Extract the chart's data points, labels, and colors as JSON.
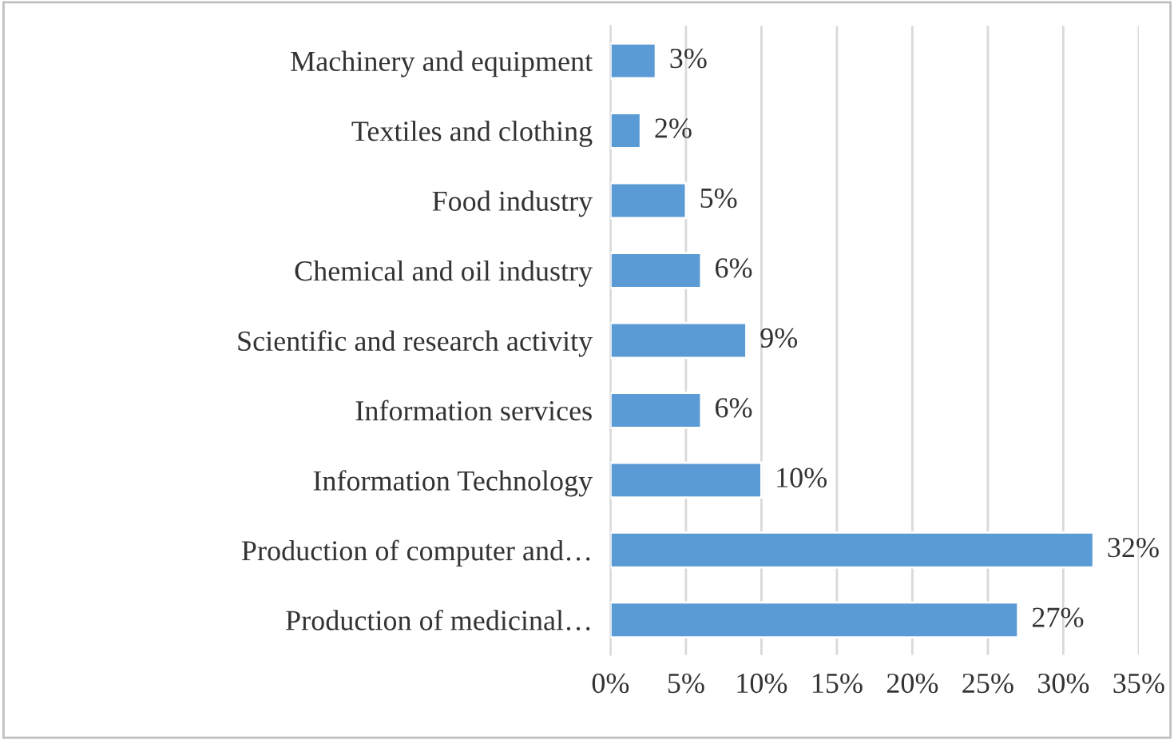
{
  "chart_data": {
    "type": "bar",
    "orientation": "horizontal",
    "categories": [
      "Machinery and equipment",
      "Textiles and clothing",
      "Food industry",
      "Chemical and oil industry",
      "Scientific and research activity",
      "Information services",
      "Information Technology",
      "Production of computer and…",
      "Production of medicinal…"
    ],
    "values": [
      3,
      2,
      5,
      6,
      9,
      6,
      10,
      32,
      27
    ],
    "value_labels": [
      "3%",
      "2%",
      "5%",
      "6%",
      "9%",
      "6%",
      "10%",
      "32%",
      "27%"
    ],
    "color": "#5b9bd5",
    "xlim": [
      0,
      35
    ],
    "xticks": [
      {
        "value": 0,
        "label": "0%"
      },
      {
        "value": 5,
        "label": "5%"
      },
      {
        "value": 10,
        "label": "10%"
      },
      {
        "value": 15,
        "label": "15%"
      },
      {
        "value": 20,
        "label": "20%"
      },
      {
        "value": 25,
        "label": "25%"
      },
      {
        "value": 30,
        "label": "30%"
      },
      {
        "value": 35,
        "label": "35%"
      }
    ],
    "grid": "x",
    "legend": false
  }
}
